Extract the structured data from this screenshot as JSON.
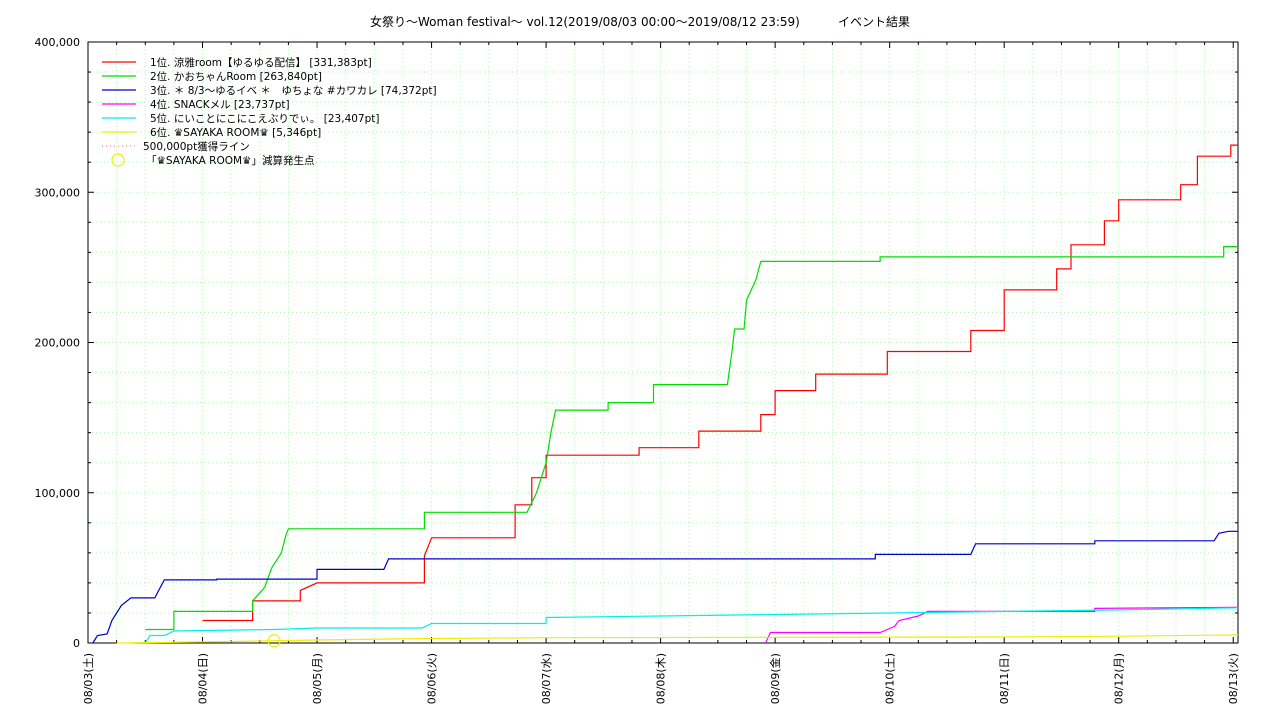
{
  "title": "女祭り〜Woman festival〜 vol.12(2019/08/03 00:00〜2019/08/12 23:59)          イベント結果",
  "chart_data": {
    "type": "line",
    "title": "女祭り〜Woman festival〜 vol.12(2019/08/03 00:00〜2019/08/12 23:59)          イベント結果",
    "xlabel": "",
    "ylabel": "",
    "x_ticks": [
      "08/03(土)",
      "08/04(日)",
      "08/05(月)",
      "08/06(火)",
      "08/07(水)",
      "08/08(木)",
      "08/09(金)",
      "08/10(土)",
      "08/11(日)",
      "08/12(月)",
      "08/13(火)"
    ],
    "xlim": [
      "2019-08-03T00:00",
      "2019-08-13T01:00"
    ],
    "y_ticks": [
      "0",
      "100,000",
      "200,000",
      "300,000",
      "400,000"
    ],
    "ylim": [
      0,
      400000
    ],
    "grid": true,
    "legend_position": "top-left",
    "series": [
      {
        "name": "1位. 涼雅room【ゆるゆる配信】 [331,383pt]",
        "color": "#ff0000",
        "points": [
          [
            "2019-08-04T00:00",
            15000
          ],
          [
            "2019-08-04T10:30",
            15000
          ],
          [
            "2019-08-04T10:30",
            28000
          ],
          [
            "2019-08-04T20:30",
            28000
          ],
          [
            "2019-08-04T20:30",
            35000
          ],
          [
            "2019-08-05T00:00",
            40000
          ],
          [
            "2019-08-05T22:30",
            40000
          ],
          [
            "2019-08-05T22:30",
            58000
          ],
          [
            "2019-08-06T00:00",
            70000
          ],
          [
            "2019-08-06T17:30",
            70000
          ],
          [
            "2019-08-06T17:30",
            92000
          ],
          [
            "2019-08-06T21:00",
            92000
          ],
          [
            "2019-08-06T21:00",
            110000
          ],
          [
            "2019-08-07T00:00",
            110000
          ],
          [
            "2019-08-07T00:00",
            125000
          ],
          [
            "2019-08-07T19:30",
            125000
          ],
          [
            "2019-08-07T19:30",
            130000
          ],
          [
            "2019-08-08T08:00",
            130000
          ],
          [
            "2019-08-08T08:00",
            141000
          ],
          [
            "2019-08-08T21:00",
            141000
          ],
          [
            "2019-08-08T21:00",
            152000
          ],
          [
            "2019-08-09T00:00",
            152000
          ],
          [
            "2019-08-09T00:00",
            168000
          ],
          [
            "2019-08-09T08:30",
            168000
          ],
          [
            "2019-08-09T08:30",
            179000
          ],
          [
            "2019-08-09T23:30",
            179000
          ],
          [
            "2019-08-09T23:30",
            194000
          ],
          [
            "2019-08-10T17:00",
            194000
          ],
          [
            "2019-08-10T17:00",
            208000
          ],
          [
            "2019-08-11T00:00",
            208000
          ],
          [
            "2019-08-11T00:00",
            235000
          ],
          [
            "2019-08-11T11:00",
            235000
          ],
          [
            "2019-08-11T11:00",
            249000
          ],
          [
            "2019-08-11T14:00",
            249000
          ],
          [
            "2019-08-11T14:00",
            265000
          ],
          [
            "2019-08-11T21:00",
            265000
          ],
          [
            "2019-08-11T21:00",
            281000
          ],
          [
            "2019-08-12T00:00",
            281000
          ],
          [
            "2019-08-12T00:00",
            295000
          ],
          [
            "2019-08-12T13:00",
            295000
          ],
          [
            "2019-08-12T13:00",
            305000
          ],
          [
            "2019-08-12T16:30",
            305000
          ],
          [
            "2019-08-12T16:30",
            324000
          ],
          [
            "2019-08-12T23:30",
            324000
          ],
          [
            "2019-08-12T23:30",
            331383
          ],
          [
            "2019-08-13T01:00",
            331383
          ]
        ]
      },
      {
        "name": "2位. かおちゃんRoom [263,840pt]",
        "color": "#00dd00",
        "points": [
          [
            "2019-08-03T12:00",
            9000
          ],
          [
            "2019-08-03T18:00",
            9000
          ],
          [
            "2019-08-03T18:00",
            21000
          ],
          [
            "2019-08-04T10:30",
            21000
          ],
          [
            "2019-08-04T10:30",
            28000
          ],
          [
            "2019-08-04T13:00",
            37000
          ],
          [
            "2019-08-04T14:30",
            50000
          ],
          [
            "2019-08-04T16:30",
            60000
          ],
          [
            "2019-08-04T17:30",
            72000
          ],
          [
            "2019-08-04T18:00",
            76000
          ],
          [
            "2019-08-05T22:30",
            76000
          ],
          [
            "2019-08-05T22:30",
            87000
          ],
          [
            "2019-08-06T20:00",
            87000
          ],
          [
            "2019-08-06T22:00",
            100000
          ],
          [
            "2019-08-06T23:30",
            115000
          ],
          [
            "2019-08-07T00:00",
            120000
          ],
          [
            "2019-08-07T01:00",
            140000
          ],
          [
            "2019-08-07T02:00",
            155000
          ],
          [
            "2019-08-07T13:00",
            155000
          ],
          [
            "2019-08-07T13:00",
            160000
          ],
          [
            "2019-08-07T22:30",
            160000
          ],
          [
            "2019-08-07T22:30",
            172000
          ],
          [
            "2019-08-08T14:00",
            172000
          ],
          [
            "2019-08-08T15:00",
            195000
          ],
          [
            "2019-08-08T15:30",
            209000
          ],
          [
            "2019-08-08T17:30",
            209000
          ],
          [
            "2019-08-08T18:00",
            228000
          ],
          [
            "2019-08-08T19:00",
            235000
          ],
          [
            "2019-08-08T20:00",
            242000
          ],
          [
            "2019-08-08T21:00",
            254000
          ],
          [
            "2019-08-09T22:00",
            254000
          ],
          [
            "2019-08-09T22:00",
            257000
          ],
          [
            "2019-08-12T22:00",
            257000
          ],
          [
            "2019-08-12T22:00",
            263840
          ],
          [
            "2019-08-13T01:00",
            263840
          ]
        ]
      },
      {
        "name": "3位. ＊ 8/3〜ゆるイベ ＊　ゆちょな #カワカレ [74,372pt]",
        "color": "#0000cc",
        "points": [
          [
            "2019-08-03T01:00",
            0
          ],
          [
            "2019-08-03T02:00",
            5000
          ],
          [
            "2019-08-03T04:00",
            6000
          ],
          [
            "2019-08-03T05:00",
            15000
          ],
          [
            "2019-08-03T06:00",
            20000
          ],
          [
            "2019-08-03T07:00",
            25000
          ],
          [
            "2019-08-03T09:00",
            30000
          ],
          [
            "2019-08-03T14:00",
            30000
          ],
          [
            "2019-08-03T16:00",
            42000
          ],
          [
            "2019-08-04T03:00",
            42000
          ],
          [
            "2019-08-04T03:00",
            42500
          ],
          [
            "2019-08-05T00:00",
            42500
          ],
          [
            "2019-08-05T00:00",
            49000
          ],
          [
            "2019-08-05T14:00",
            49000
          ],
          [
            "2019-08-05T15:00",
            56000
          ],
          [
            "2019-08-09T21:00",
            56000
          ],
          [
            "2019-08-09T21:00",
            59000
          ],
          [
            "2019-08-10T17:00",
            59000
          ],
          [
            "2019-08-10T18:00",
            66000
          ],
          [
            "2019-08-11T19:00",
            66000
          ],
          [
            "2019-08-11T19:00",
            68000
          ],
          [
            "2019-08-12T20:00",
            68000
          ],
          [
            "2019-08-12T21:00",
            73000
          ],
          [
            "2019-08-12T23:00",
            74372
          ],
          [
            "2019-08-13T01:00",
            74372
          ]
        ]
      },
      {
        "name": "4位. SNACKメル [23,737pt]",
        "color": "#ff00ff",
        "points": [
          [
            "2019-08-08T22:00",
            0
          ],
          [
            "2019-08-08T23:00",
            7000
          ],
          [
            "2019-08-09T22:00",
            7000
          ],
          [
            "2019-08-10T01:00",
            11000
          ],
          [
            "2019-08-10T02:00",
            15000
          ],
          [
            "2019-08-10T06:00",
            18000
          ],
          [
            "2019-08-10T08:00",
            21000
          ],
          [
            "2019-08-11T19:00",
            21000
          ],
          [
            "2019-08-11T19:00",
            23000
          ],
          [
            "2019-08-13T01:00",
            23737
          ]
        ]
      },
      {
        "name": "5位. にいことにこにこえぶりでぃ。 [23,407pt]",
        "color": "#00eeee",
        "points": [
          [
            "2019-08-03T12:00",
            0
          ],
          [
            "2019-08-03T13:00",
            5000
          ],
          [
            "2019-08-03T16:00",
            5000
          ],
          [
            "2019-08-03T18:00",
            8000
          ],
          [
            "2019-08-04T15:00",
            9000
          ],
          [
            "2019-08-05T00:00",
            10000
          ],
          [
            "2019-08-05T22:00",
            10000
          ],
          [
            "2019-08-06T00:00",
            13000
          ],
          [
            "2019-08-07T00:00",
            13000
          ],
          [
            "2019-08-07T00:00",
            17000
          ],
          [
            "2019-08-08T00:00",
            18000
          ],
          [
            "2019-08-09T00:00",
            19000
          ],
          [
            "2019-08-10T00:00",
            20000
          ],
          [
            "2019-08-11T00:00",
            21000
          ],
          [
            "2019-08-12T00:00",
            22000
          ],
          [
            "2019-08-13T01:00",
            23407
          ]
        ]
      },
      {
        "name": "6位. ♛SAYAKA ROOM♛ [5,346pt]",
        "color": "#eeee00",
        "points": [
          [
            "2019-08-03T06:00",
            0
          ],
          [
            "2019-08-04T06:00",
            1000
          ],
          [
            "2019-08-05T00:00",
            2000
          ],
          [
            "2019-08-06T00:00",
            3000
          ],
          [
            "2019-08-07T00:00",
            3500
          ],
          [
            "2019-08-09T00:00",
            3800
          ],
          [
            "2019-08-11T00:00",
            4000
          ],
          [
            "2019-08-12T00:00",
            4500
          ],
          [
            "2019-08-12T20:00",
            5200
          ],
          [
            "2019-08-13T01:00",
            5346
          ]
        ]
      }
    ],
    "line_500000": {
      "name": "500,000pt獲得ライン",
      "color": "#ff6666",
      "value": 500000
    },
    "penalty_marker": {
      "name": "「♛SAYAKA ROOM♛」減算発生点",
      "color": "#eeee00",
      "points": [
        [
          "2019-08-04T15:00",
          1500
        ]
      ]
    }
  }
}
